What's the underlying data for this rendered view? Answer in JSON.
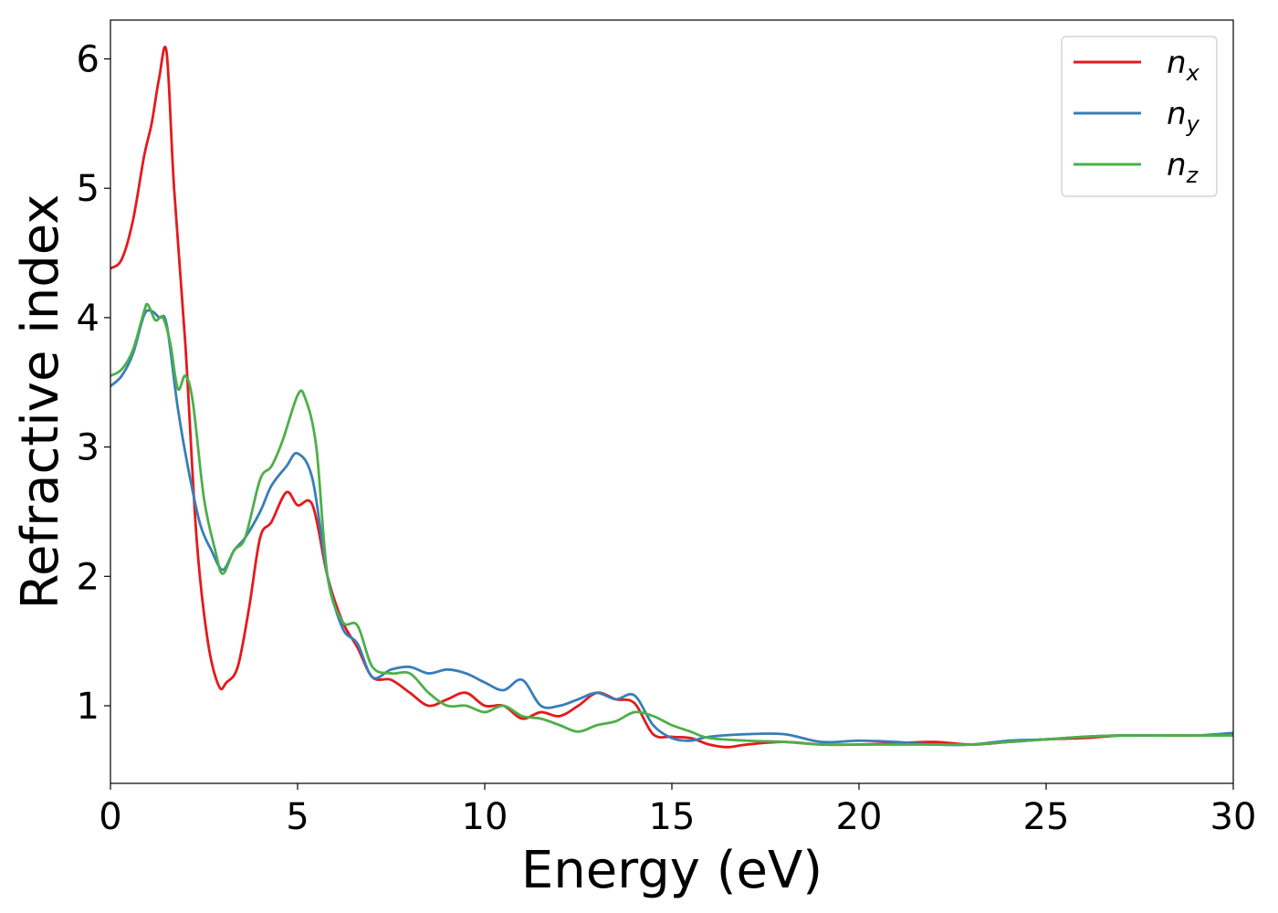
{
  "chart_data": {
    "type": "line",
    "xlabel": "Energy (eV)",
    "ylabel": "Refractive index",
    "xlim": [
      0,
      30
    ],
    "ylim": [
      0.4,
      6.3
    ],
    "xticks": [
      0,
      5,
      10,
      15,
      20,
      25,
      30
    ],
    "yticks": [
      1,
      2,
      3,
      4,
      5,
      6
    ],
    "grid": false,
    "legend_position": "top-right",
    "series": [
      {
        "name": "n_x",
        "label_base": "n",
        "label_sub": "x",
        "color": "#e41a1c",
        "x": [
          0,
          0.3,
          0.6,
          0.9,
          1.1,
          1.3,
          1.5,
          1.7,
          2.0,
          2.3,
          2.6,
          2.9,
          3.1,
          3.4,
          3.7,
          4.0,
          4.3,
          4.7,
          5.0,
          5.4,
          5.8,
          6.2,
          6.6,
          7.0,
          7.5,
          8.0,
          8.5,
          9.0,
          9.5,
          10.0,
          10.5,
          11.0,
          11.5,
          12.0,
          12.5,
          13.0,
          13.5,
          14.0,
          14.5,
          15.0,
          15.5,
          16.0,
          16.5,
          17.0,
          18.0,
          19.0,
          20.0,
          21.0,
          22.0,
          23.0,
          24.0,
          25.0,
          26.0,
          27.0,
          28.0,
          29.0,
          30.0
        ],
        "y": [
          4.38,
          4.45,
          4.75,
          5.25,
          5.5,
          5.85,
          6.05,
          5.0,
          3.8,
          2.3,
          1.5,
          1.15,
          1.18,
          1.3,
          1.75,
          2.3,
          2.42,
          2.65,
          2.55,
          2.55,
          2.0,
          1.65,
          1.45,
          1.22,
          1.2,
          1.1,
          1.0,
          1.05,
          1.1,
          1.0,
          1.0,
          0.9,
          0.95,
          0.92,
          1.0,
          1.1,
          1.05,
          1.02,
          0.78,
          0.76,
          0.75,
          0.7,
          0.68,
          0.7,
          0.72,
          0.7,
          0.7,
          0.71,
          0.72,
          0.7,
          0.72,
          0.74,
          0.75,
          0.77,
          0.77,
          0.77,
          0.77
        ]
      },
      {
        "name": "n_y",
        "label_base": "n",
        "label_sub": "y",
        "color": "#377eb8",
        "x": [
          0,
          0.3,
          0.6,
          0.9,
          1.1,
          1.3,
          1.5,
          1.8,
          2.1,
          2.4,
          2.7,
          3.0,
          3.3,
          3.6,
          4.0,
          4.3,
          4.7,
          5.0,
          5.4,
          5.8,
          6.2,
          6.6,
          7.0,
          7.5,
          8.0,
          8.5,
          9.0,
          9.5,
          10.0,
          10.5,
          11.0,
          11.5,
          12.0,
          12.5,
          13.0,
          13.5,
          14.0,
          14.5,
          15.0,
          15.5,
          16.0,
          17.0,
          18.0,
          19.0,
          20.0,
          21.0,
          22.0,
          23.0,
          24.0,
          25.0,
          26.0,
          27.0,
          28.0,
          29.0,
          30.0
        ],
        "y": [
          3.47,
          3.55,
          3.72,
          4.02,
          4.05,
          4.0,
          3.95,
          3.3,
          2.8,
          2.4,
          2.2,
          2.05,
          2.2,
          2.3,
          2.5,
          2.7,
          2.85,
          2.95,
          2.75,
          2.0,
          1.6,
          1.48,
          1.22,
          1.28,
          1.3,
          1.25,
          1.28,
          1.25,
          1.18,
          1.12,
          1.2,
          1.0,
          1.0,
          1.05,
          1.1,
          1.05,
          1.08,
          0.85,
          0.75,
          0.73,
          0.76,
          0.78,
          0.78,
          0.72,
          0.73,
          0.72,
          0.7,
          0.7,
          0.73,
          0.74,
          0.76,
          0.77,
          0.77,
          0.77,
          0.79
        ]
      },
      {
        "name": "n_z",
        "label_base": "n",
        "label_sub": "z",
        "color": "#4daf4a",
        "x": [
          0,
          0.3,
          0.6,
          0.9,
          1.0,
          1.2,
          1.4,
          1.6,
          1.8,
          2.0,
          2.2,
          2.5,
          2.8,
          3.0,
          3.3,
          3.6,
          4.0,
          4.3,
          4.6,
          5.0,
          5.2,
          5.5,
          5.8,
          6.2,
          6.6,
          7.0,
          7.5,
          8.0,
          8.5,
          9.0,
          9.5,
          10.0,
          10.5,
          11.0,
          11.5,
          12.0,
          12.5,
          13.0,
          13.5,
          14.0,
          14.5,
          15.0,
          15.5,
          16.0,
          17.0,
          18.0,
          19.0,
          20.0,
          21.0,
          22.0,
          23.0,
          24.0,
          25.0,
          26.0,
          27.0,
          28.0,
          29.0,
          30.0
        ],
        "y": [
          3.55,
          3.6,
          3.75,
          4.05,
          4.1,
          3.98,
          4.0,
          3.8,
          3.45,
          3.55,
          3.35,
          2.6,
          2.2,
          2.02,
          2.2,
          2.3,
          2.75,
          2.85,
          3.05,
          3.4,
          3.38,
          3.0,
          2.0,
          1.65,
          1.62,
          1.3,
          1.25,
          1.25,
          1.1,
          1.0,
          1.0,
          0.95,
          1.0,
          0.92,
          0.9,
          0.85,
          0.8,
          0.85,
          0.88,
          0.95,
          0.92,
          0.85,
          0.8,
          0.75,
          0.73,
          0.72,
          0.7,
          0.7,
          0.7,
          0.7,
          0.7,
          0.72,
          0.74,
          0.76,
          0.77,
          0.77,
          0.77,
          0.77
        ]
      }
    ]
  }
}
